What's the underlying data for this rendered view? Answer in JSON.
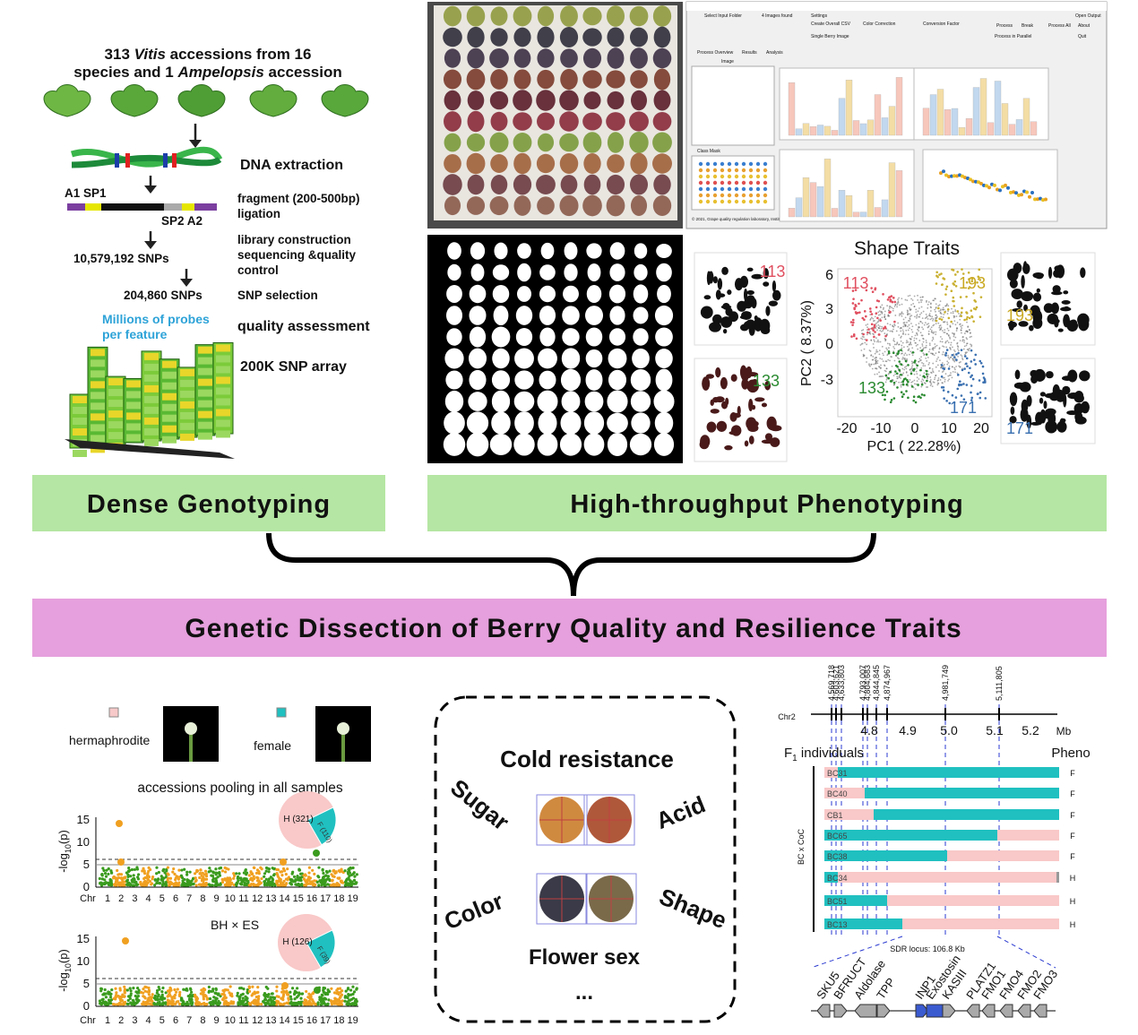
{
  "genotyping": {
    "line1": [
      "313 ",
      "Vitis",
      " accessions from 16"
    ],
    "line2": [
      "species and 1 ",
      "Ampelopsis",
      " accession"
    ],
    "dna_extraction": "DNA extraction",
    "adapter_left": "A1 SP1",
    "adapter_right": "SP2 A2",
    "fragment": [
      "fragment (200-500bp)",
      "ligation"
    ],
    "library": [
      "library construction",
      "sequencing &quality",
      "control"
    ],
    "snps_raw": "10,579,192 SNPs",
    "snps_selected": "204,860 SNPs",
    "snp_selection": "SNP selection",
    "probes": [
      "Millions of probes",
      "per feature"
    ],
    "quality": "quality assessment",
    "array": "200K SNP array",
    "label": "Dense Genotyping"
  },
  "phenotyping": {
    "software": {
      "buttons": [
        "Select Input Folder",
        "4 Images found",
        "Settings",
        "Create Overall CSV",
        "Single Berry Image",
        "Color Correction",
        "Conversion Factor",
        "Open Output",
        "Process",
        "Break",
        "Process All",
        "About",
        "Quit",
        "Process in Parallel"
      ],
      "tabs": [
        "Process Overview",
        "Results",
        "Analysis"
      ],
      "panels": [
        "Image",
        "Class Mask"
      ],
      "footer": "© 2021, Grape quality regulation laboratory, Institute of Botany, Chinese Academy of Sciences (IB-CAS), Beijing, China"
    },
    "shape_title": "Shape Traits",
    "x_label": "PC1 ( 22.28%)",
    "y_label": "PC2 ( 8.37%)",
    "xticks": [
      "-20",
      "-10",
      "0",
      "10",
      "20"
    ],
    "yticks": [
      "6",
      "3",
      "0",
      "-3"
    ],
    "clusters": [
      "113",
      "193",
      "133",
      "171"
    ],
    "label": "High-throughput Phenotyping"
  },
  "banner": "Genetic Dissection of Berry Quality and Resilience Traits",
  "flower_sex": {
    "hermaphrodite": "hermaphrodite",
    "female": "female",
    "plot1_title": "accessions pooling in all samples",
    "plot2_title": "BH × ES",
    "y_label": "-log",
    "y_label_sub": "10",
    "y_label_end": "(p)",
    "yticks": [
      "15",
      "10",
      "5",
      "0"
    ],
    "chr": "Chr",
    "chromosomes": [
      "1",
      "2",
      "3",
      "4",
      "5",
      "6",
      "7",
      "8",
      "9",
      "10",
      "11",
      "12",
      "13",
      "14",
      "15",
      "16",
      "17",
      "18",
      "19"
    ],
    "pie1": [
      "H (321)",
      "F (110)"
    ],
    "pie2": [
      "H (126)",
      "F (39)"
    ]
  },
  "traits": {
    "cold": "Cold resistance",
    "sugar": "Sugar",
    "acid": "Acid",
    "color": "Color",
    "shape": "Shape",
    "flower": "Flower sex",
    "more": "..."
  },
  "locus": {
    "positions": [
      "4,569,718",
      "4,603,621",
      "4,633,803",
      "4,793,007",
      "4,804,683",
      "4,844,845",
      "4,874,967",
      "4,981,749",
      "5,111,805"
    ],
    "chr": "Chr2",
    "ticks": [
      "4.8",
      "4.9",
      "5.0",
      "5.1",
      "5.2"
    ],
    "unit": "Mb",
    "individuals": [
      "F",
      "1",
      " individuals"
    ],
    "pheno": "Pheno",
    "population": "BC x CoC",
    "rows": [
      [
        "BC31",
        "F"
      ],
      [
        "BC40",
        "F"
      ],
      [
        "CB1",
        "F"
      ],
      [
        "BC65",
        "F"
      ],
      [
        "BC38",
        "F"
      ],
      [
        "BC34",
        "H"
      ],
      [
        "BC51",
        "H"
      ],
      [
        "BC13",
        "H"
      ]
    ],
    "sdr": "SDR locus: 106.8 Kb",
    "genes": [
      "SKU5",
      "BFRUCT",
      "Aldolase",
      "TPP",
      "INP1",
      "Exostosin",
      "KASIII",
      "PLATZ1",
      "FMO1",
      "FMO4",
      "FMO2",
      "FMO3"
    ]
  }
}
